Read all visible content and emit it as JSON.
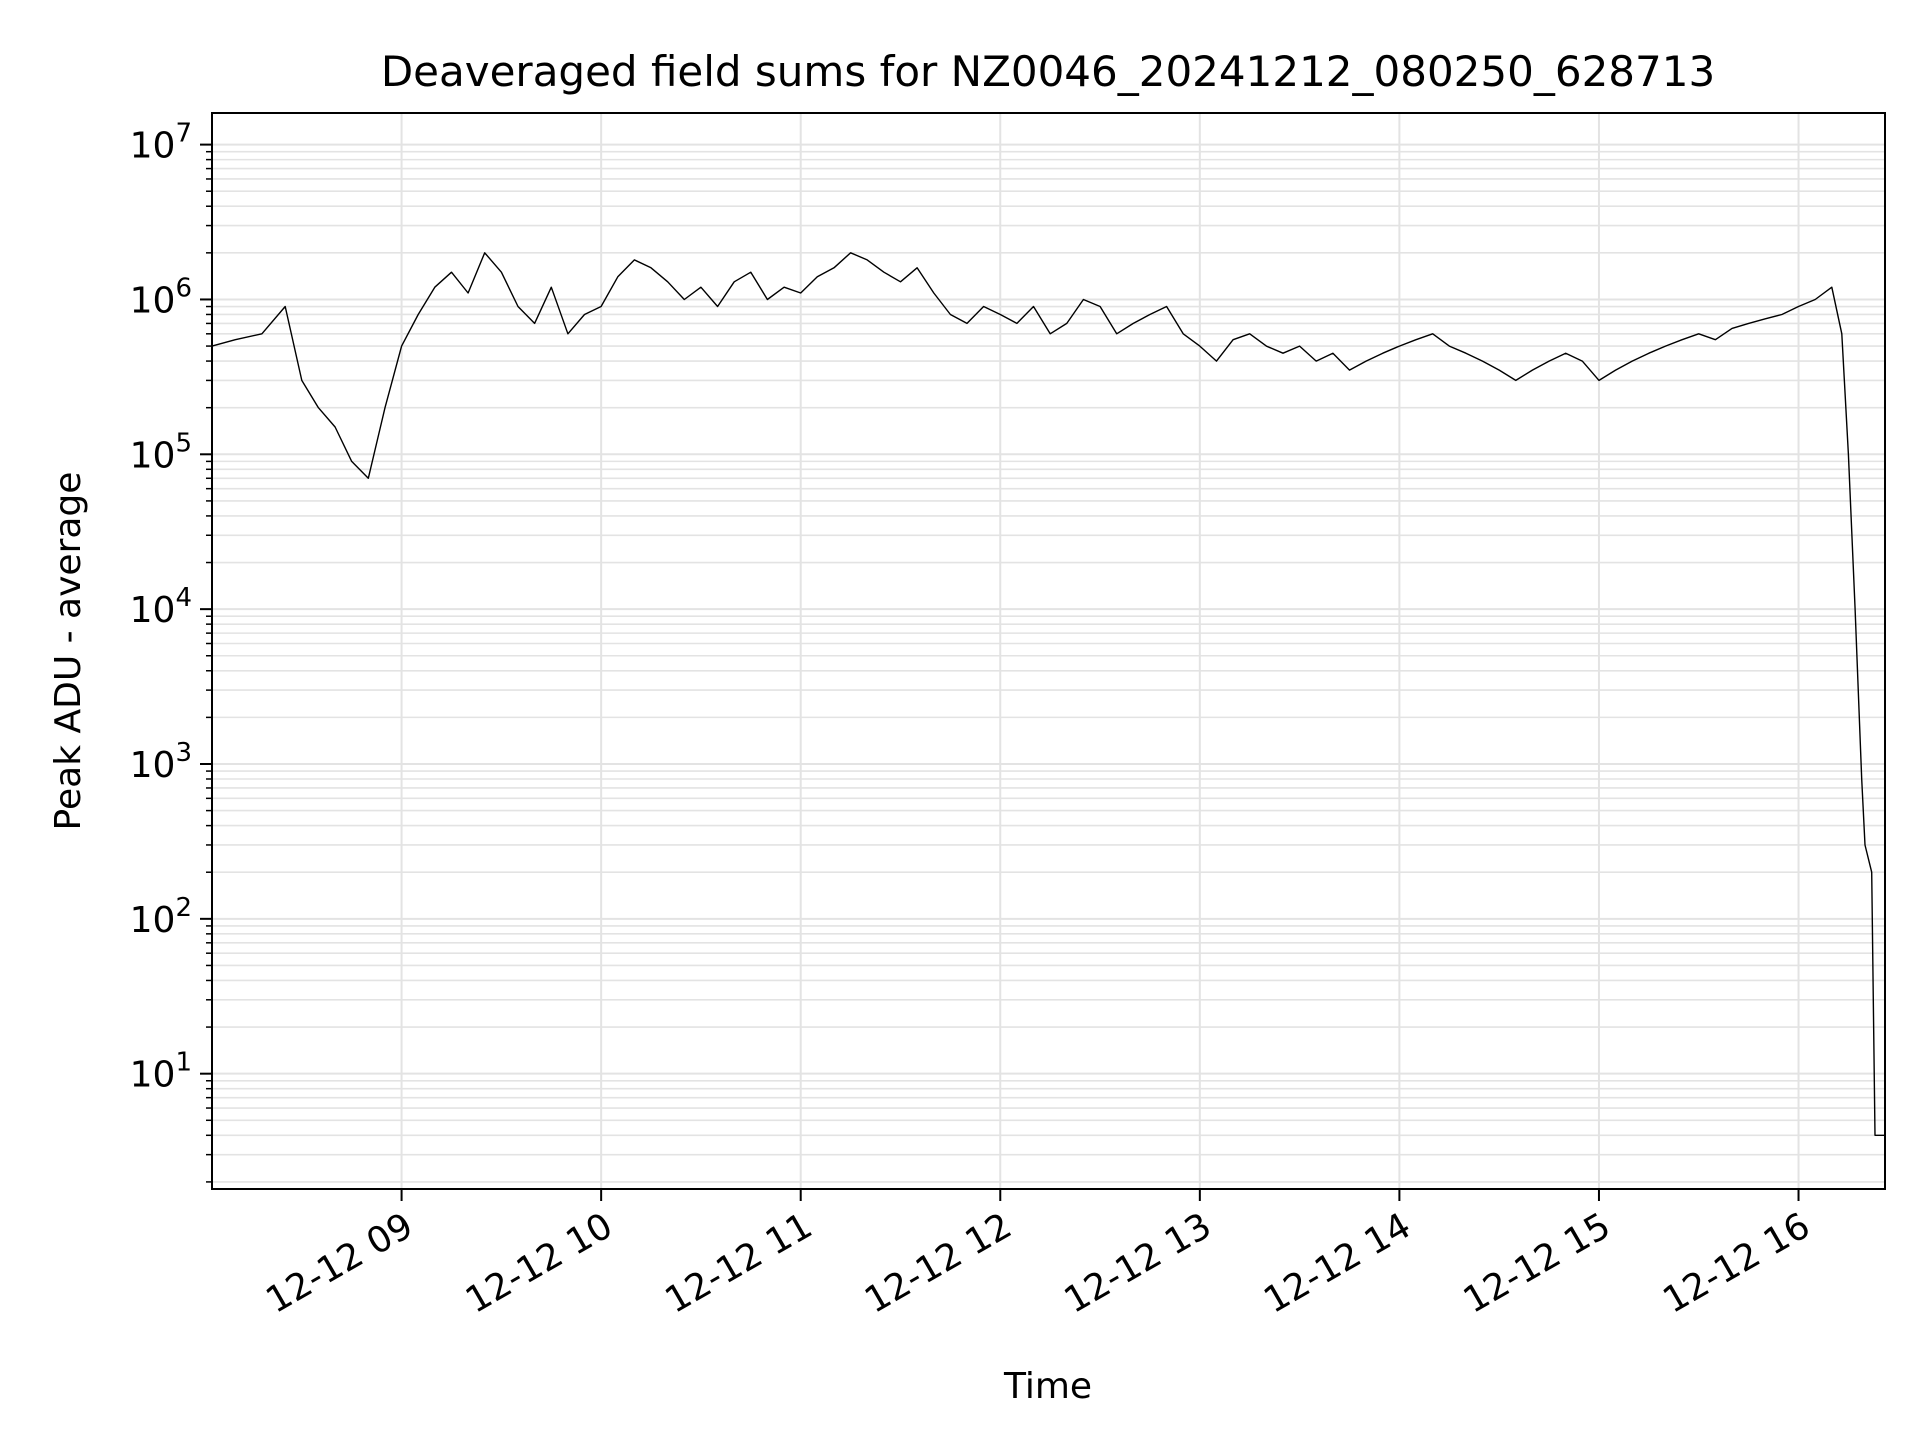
{
  "chart_data": {
    "type": "line",
    "title": "Deaveraged field sums for NZ0046_20241212_080250_628713",
    "xlabel": "Time",
    "ylabel": "Peak ADU - average",
    "yscale": "log",
    "ylim": [
      1.8,
      16000000
    ],
    "xlim": [
      "2024-12-12 08:03",
      "2024-12-12 16:26"
    ],
    "grid": true,
    "line_color": "#000000",
    "x_ticks": [
      {
        "value": "2024-12-12 09:00",
        "label": "12-12 09"
      },
      {
        "value": "2024-12-12 10:00",
        "label": "12-12 10"
      },
      {
        "value": "2024-12-12 11:00",
        "label": "12-12 11"
      },
      {
        "value": "2024-12-12 12:00",
        "label": "12-12 12"
      },
      {
        "value": "2024-12-12 13:00",
        "label": "12-12 13"
      },
      {
        "value": "2024-12-12 14:00",
        "label": "12-12 14"
      },
      {
        "value": "2024-12-12 15:00",
        "label": "12-12 15"
      },
      {
        "value": "2024-12-12 16:00",
        "label": "12-12 16"
      }
    ],
    "y_ticks": [
      {
        "value": 10,
        "base": "10",
        "exp": "1"
      },
      {
        "value": 100,
        "base": "10",
        "exp": "2"
      },
      {
        "value": 1000,
        "base": "10",
        "exp": "3"
      },
      {
        "value": 10000,
        "base": "10",
        "exp": "4"
      },
      {
        "value": 100000,
        "base": "10",
        "exp": "5"
      },
      {
        "value": 1000000,
        "base": "10",
        "exp": "6"
      },
      {
        "value": 10000000,
        "base": "10",
        "exp": "7"
      }
    ],
    "series": [
      {
        "x": [
          "2024-12-12 08:03",
          "2024-12-12 08:10",
          "2024-12-12 08:18",
          "2024-12-12 08:25",
          "2024-12-12 08:30",
          "2024-12-12 08:35",
          "2024-12-12 08:40",
          "2024-12-12 08:45",
          "2024-12-12 08:50",
          "2024-12-12 08:55",
          "2024-12-12 09:00",
          "2024-12-12 09:05",
          "2024-12-12 09:10",
          "2024-12-12 09:15",
          "2024-12-12 09:20",
          "2024-12-12 09:25",
          "2024-12-12 09:30",
          "2024-12-12 09:35",
          "2024-12-12 09:40",
          "2024-12-12 09:45",
          "2024-12-12 09:50",
          "2024-12-12 09:55",
          "2024-12-12 10:00",
          "2024-12-12 10:05",
          "2024-12-12 10:10",
          "2024-12-12 10:15",
          "2024-12-12 10:20",
          "2024-12-12 10:25",
          "2024-12-12 10:30",
          "2024-12-12 10:35",
          "2024-12-12 10:40",
          "2024-12-12 10:45",
          "2024-12-12 10:50",
          "2024-12-12 10:55",
          "2024-12-12 11:00",
          "2024-12-12 11:05",
          "2024-12-12 11:10",
          "2024-12-12 11:15",
          "2024-12-12 11:20",
          "2024-12-12 11:25",
          "2024-12-12 11:30",
          "2024-12-12 11:35",
          "2024-12-12 11:40",
          "2024-12-12 11:45",
          "2024-12-12 11:50",
          "2024-12-12 11:55",
          "2024-12-12 12:00",
          "2024-12-12 12:05",
          "2024-12-12 12:10",
          "2024-12-12 12:15",
          "2024-12-12 12:20",
          "2024-12-12 12:25",
          "2024-12-12 12:30",
          "2024-12-12 12:35",
          "2024-12-12 12:40",
          "2024-12-12 12:45",
          "2024-12-12 12:50",
          "2024-12-12 12:55",
          "2024-12-12 13:00",
          "2024-12-12 13:05",
          "2024-12-12 13:10",
          "2024-12-12 13:15",
          "2024-12-12 13:20",
          "2024-12-12 13:25",
          "2024-12-12 13:30",
          "2024-12-12 13:35",
          "2024-12-12 13:40",
          "2024-12-12 13:45",
          "2024-12-12 13:50",
          "2024-12-12 13:55",
          "2024-12-12 14:00",
          "2024-12-12 14:05",
          "2024-12-12 14:10",
          "2024-12-12 14:15",
          "2024-12-12 14:20",
          "2024-12-12 14:25",
          "2024-12-12 14:30",
          "2024-12-12 14:35",
          "2024-12-12 14:40",
          "2024-12-12 14:45",
          "2024-12-12 14:50",
          "2024-12-12 14:55",
          "2024-12-12 15:00",
          "2024-12-12 15:05",
          "2024-12-12 15:10",
          "2024-12-12 15:15",
          "2024-12-12 15:20",
          "2024-12-12 15:25",
          "2024-12-12 15:30",
          "2024-12-12 15:35",
          "2024-12-12 15:40",
          "2024-12-12 15:45",
          "2024-12-12 15:50",
          "2024-12-12 15:55",
          "2024-12-12 16:00",
          "2024-12-12 16:05",
          "2024-12-12 16:10",
          "2024-12-12 16:13",
          "2024-12-12 16:15",
          "2024-12-12 16:17",
          "2024-12-12 16:19",
          "2024-12-12 16:20",
          "2024-12-12 16:22",
          "2024-12-12 16:23",
          "2024-12-12 16:24",
          "2024-12-12 16:26"
        ],
        "y": [
          500000,
          550000,
          600000,
          900000,
          300000,
          200000,
          150000,
          90000,
          70000,
          200000,
          500000,
          800000,
          1200000,
          1500000,
          1100000,
          2000000,
          1500000,
          900000,
          700000,
          1200000,
          600000,
          800000,
          900000,
          1400000,
          1800000,
          1600000,
          1300000,
          1000000,
          1200000,
          900000,
          1300000,
          1500000,
          1000000,
          1200000,
          1100000,
          1400000,
          1600000,
          2000000,
          1800000,
          1500000,
          1300000,
          1600000,
          1100000,
          800000,
          700000,
          900000,
          800000,
          700000,
          900000,
          600000,
          700000,
          1000000,
          900000,
          600000,
          700000,
          800000,
          900000,
          600000,
          500000,
          400000,
          550000,
          600000,
          500000,
          450000,
          500000,
          400000,
          450000,
          350000,
          400000,
          450000,
          500000,
          550000,
          600000,
          500000,
          450000,
          400000,
          350000,
          300000,
          350000,
          400000,
          450000,
          400000,
          300000,
          350000,
          400000,
          450000,
          500000,
          550000,
          600000,
          550000,
          650000,
          700000,
          750000,
          800000,
          900000,
          1000000,
          1200000,
          600000,
          100000,
          10000,
          800,
          300,
          200,
          4,
          4,
          4
        ]
      }
    ]
  }
}
